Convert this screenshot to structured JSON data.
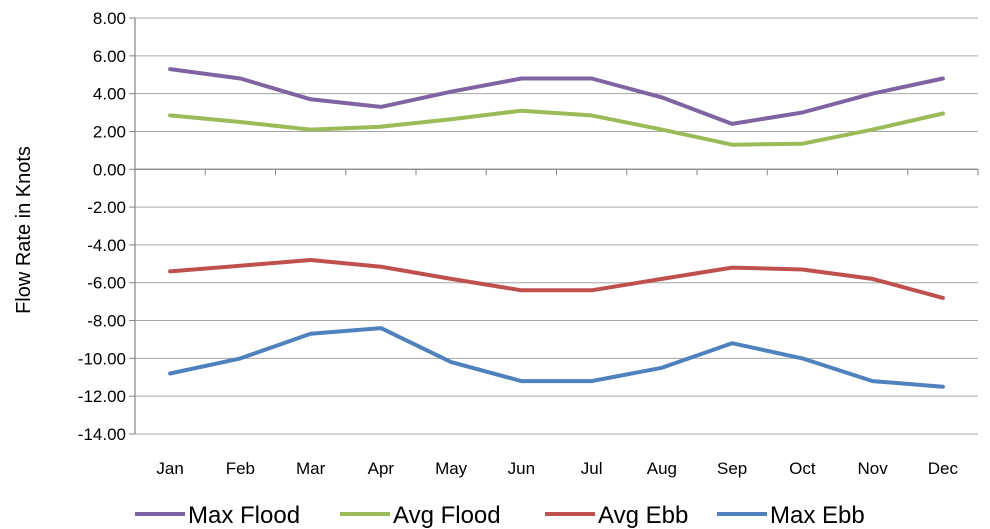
{
  "chart_data": {
    "type": "line",
    "title": "",
    "xlabel": "",
    "ylabel": "Flow Rate in Knots",
    "categories": [
      "Jan",
      "Feb",
      "Mar",
      "Apr",
      "May",
      "Jun",
      "Jul",
      "Aug",
      "Sep",
      "Oct",
      "Nov",
      "Dec"
    ],
    "ylim": [
      -14,
      8
    ],
    "yticks": [
      8,
      6,
      4,
      2,
      0,
      -2,
      -4,
      -6,
      -8,
      -10,
      -12,
      -14
    ],
    "ytick_labels": [
      "8.00",
      "6.00",
      "4.00",
      "2.00",
      "0.00",
      "-2.00",
      "-4.00",
      "-6.00",
      "-8.00",
      "-10.00",
      "-12.00",
      "-14.00"
    ],
    "grid": "horizontal",
    "legend_position": "bottom",
    "series": [
      {
        "name": "Max Flood",
        "color": "#8064a2",
        "values": [
          5.3,
          4.8,
          3.7,
          3.3,
          4.1,
          4.8,
          4.8,
          3.8,
          2.4,
          3.0,
          4.0,
          4.8
        ]
      },
      {
        "name": "Avg Flood",
        "color": "#9bbb59",
        "values": [
          2.85,
          2.5,
          2.1,
          2.25,
          2.65,
          3.1,
          2.85,
          2.1,
          1.3,
          1.35,
          2.1,
          2.95
        ]
      },
      {
        "name": "Avg Ebb",
        "color": "#c0504d",
        "values": [
          -5.4,
          -5.1,
          -4.8,
          -5.15,
          -5.8,
          -6.4,
          -6.4,
          -5.8,
          -5.2,
          -5.3,
          -5.8,
          -6.8
        ]
      },
      {
        "name": "Max Ebb",
        "color": "#4f81bd",
        "values": [
          -10.8,
          -10.0,
          -8.7,
          -8.4,
          -10.2,
          -11.2,
          -11.2,
          -10.5,
          -9.2,
          -10.0,
          -11.2,
          -11.5
        ]
      }
    ]
  }
}
